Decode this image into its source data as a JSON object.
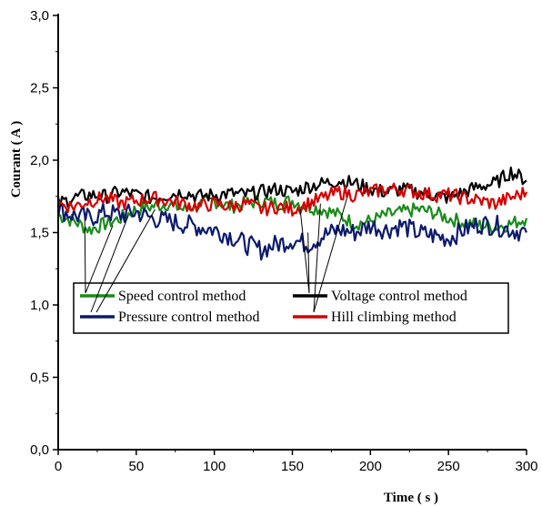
{
  "chart_data": {
    "type": "line",
    "xlabel": "Time ( s )",
    "ylabel": "Courant ( A )",
    "xlim": [
      0,
      300
    ],
    "ylim": [
      0,
      3
    ],
    "x_ticks": [
      0,
      50,
      100,
      150,
      200,
      250,
      300
    ],
    "y_ticks": [
      0,
      0.5,
      1.0,
      1.5,
      2.0,
      2.5,
      3.0
    ],
    "y_tick_labels": [
      "0,0",
      "0,5",
      "1,0",
      "1,5",
      "2,0",
      "2,5",
      "3,0"
    ],
    "grid": false,
    "legend_position": "center-left",
    "series": [
      {
        "name": "Speed control method",
        "color": "#1a8c1a",
        "x": [
          0,
          10,
          20,
          30,
          40,
          50,
          60,
          70,
          80,
          90,
          100,
          110,
          120,
          130,
          140,
          150,
          160,
          170,
          180,
          190,
          200,
          210,
          220,
          230,
          240,
          250,
          260,
          270,
          280,
          290,
          300
        ],
        "y": [
          1.62,
          1.58,
          1.52,
          1.56,
          1.6,
          1.66,
          1.68,
          1.7,
          1.66,
          1.69,
          1.72,
          1.68,
          1.7,
          1.72,
          1.7,
          1.72,
          1.68,
          1.66,
          1.62,
          1.56,
          1.58,
          1.62,
          1.64,
          1.66,
          1.64,
          1.6,
          1.57,
          1.55,
          1.54,
          1.56,
          1.6
        ]
      },
      {
        "name": "Pressure control method",
        "color": "#0c1a6e",
        "x": [
          0,
          10,
          20,
          30,
          40,
          50,
          60,
          70,
          80,
          90,
          100,
          110,
          120,
          130,
          140,
          150,
          160,
          170,
          180,
          190,
          200,
          210,
          220,
          230,
          240,
          250,
          260,
          270,
          280,
          290,
          300
        ],
        "y": [
          1.66,
          1.62,
          1.6,
          1.64,
          1.62,
          1.64,
          1.6,
          1.58,
          1.56,
          1.54,
          1.52,
          1.48,
          1.42,
          1.38,
          1.42,
          1.45,
          1.42,
          1.48,
          1.52,
          1.5,
          1.55,
          1.52,
          1.55,
          1.5,
          1.48,
          1.46,
          1.52,
          1.56,
          1.55,
          1.52,
          1.5
        ]
      },
      {
        "name": "Voltage control method",
        "color": "#000000",
        "x": [
          0,
          10,
          20,
          30,
          40,
          50,
          60,
          70,
          80,
          90,
          100,
          110,
          120,
          130,
          140,
          150,
          160,
          170,
          180,
          190,
          200,
          210,
          220,
          230,
          240,
          250,
          260,
          270,
          280,
          290,
          300
        ],
        "y": [
          1.7,
          1.74,
          1.76,
          1.75,
          1.78,
          1.76,
          1.74,
          1.76,
          1.78,
          1.75,
          1.76,
          1.77,
          1.76,
          1.78,
          1.8,
          1.78,
          1.82,
          1.84,
          1.86,
          1.84,
          1.8,
          1.78,
          1.8,
          1.78,
          1.76,
          1.74,
          1.78,
          1.82,
          1.84,
          1.92,
          1.86
        ]
      },
      {
        "name": "Hill climbing method",
        "color": "#d40000",
        "x": [
          0,
          10,
          20,
          30,
          40,
          50,
          60,
          70,
          80,
          90,
          100,
          110,
          120,
          130,
          140,
          150,
          160,
          170,
          180,
          190,
          200,
          210,
          220,
          230,
          240,
          250,
          260,
          270,
          280,
          290,
          300
        ],
        "y": [
          1.7,
          1.68,
          1.72,
          1.74,
          1.7,
          1.72,
          1.74,
          1.72,
          1.7,
          1.68,
          1.7,
          1.68,
          1.7,
          1.66,
          1.68,
          1.66,
          1.7,
          1.74,
          1.78,
          1.76,
          1.78,
          1.8,
          1.8,
          1.78,
          1.76,
          1.76,
          1.74,
          1.72,
          1.7,
          1.74,
          1.78
        ]
      }
    ]
  }
}
